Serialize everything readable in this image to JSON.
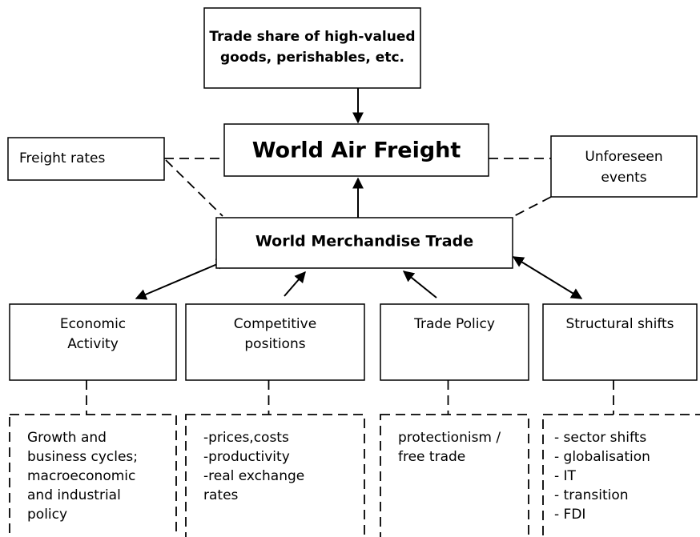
{
  "top_box": [
    "Trade share of high-valued",
    "goods, perishables, etc."
  ],
  "center": "World Air Freight",
  "freight_rates": "Freight rates",
  "unforeseen_events": [
    "Unforeseen",
    "events"
  ],
  "merchandise": "World Merchandise Trade",
  "drivers": [
    {
      "label": [
        "Economic",
        "Activity"
      ],
      "details": [
        "Growth and",
        "business cycles;",
        "macroeconomic",
        "and industrial",
        "policy"
      ]
    },
    {
      "label": [
        "Competitive",
        "positions"
      ],
      "details": [
        "-prices,costs",
        "-productivity",
        "-real exchange",
        "rates"
      ]
    },
    {
      "label": [
        "Trade Policy"
      ],
      "details": [
        "protectionism /",
        "free trade"
      ]
    },
    {
      "label": [
        "Structural shifts"
      ],
      "details": [
        "- sector shifts",
        "- globalisation",
        "- IT",
        "- transition",
        "- FDI"
      ]
    }
  ]
}
